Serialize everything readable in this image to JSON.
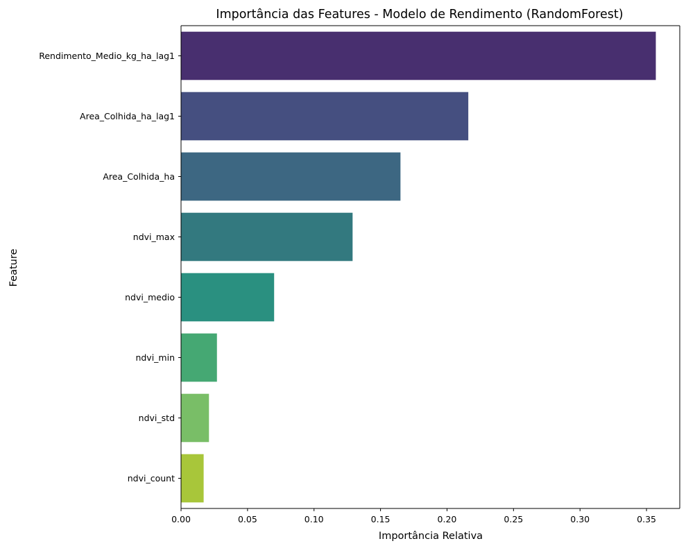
{
  "chart_data": {
    "type": "bar",
    "orientation": "horizontal",
    "title": "Importância das Features - Modelo de Rendimento (RandomForest)",
    "xlabel": "Importância Relativa",
    "ylabel": "Feature",
    "categories": [
      "Rendimento_Medio_kg_ha_lag1",
      "Area_Colhida_ha_lag1",
      "Area_Colhida_ha",
      "ndvi_max",
      "ndvi_medio",
      "ndvi_min",
      "ndvi_std",
      "ndvi_count"
    ],
    "values": [
      0.357,
      0.216,
      0.165,
      0.129,
      0.07,
      0.027,
      0.021,
      0.017
    ],
    "colors": [
      "#482f6f",
      "#454f80",
      "#3d6782",
      "#33797f",
      "#2a9080",
      "#45a873",
      "#79be67",
      "#a8c63a"
    ],
    "xlim": [
      0,
      0.375
    ],
    "xticks": [
      "0.00",
      "0.05",
      "0.10",
      "0.15",
      "0.20",
      "0.25",
      "0.30",
      "0.35"
    ],
    "grid": false,
    "legend": "none"
  }
}
